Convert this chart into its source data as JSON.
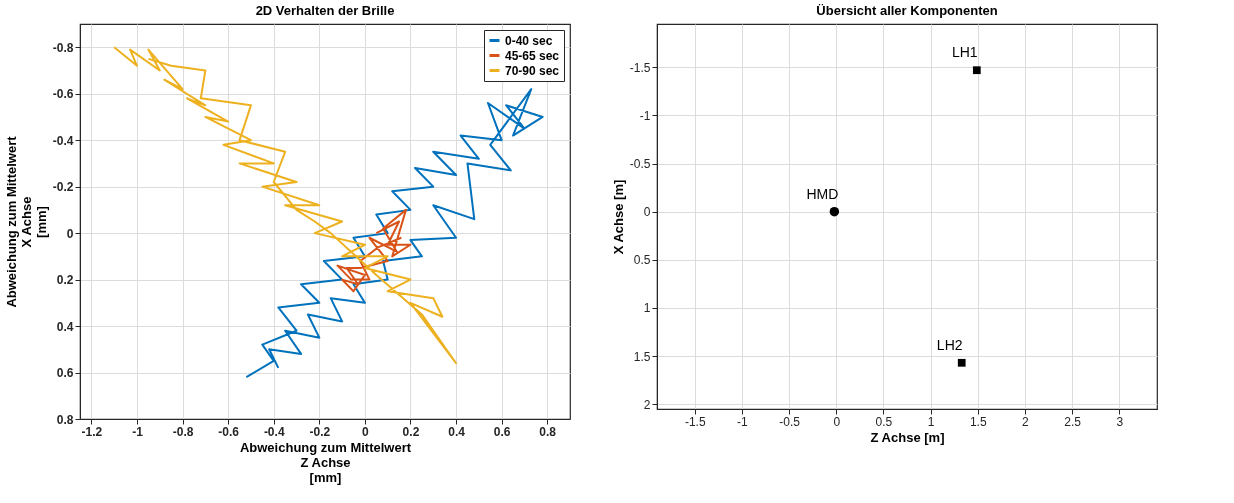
{
  "chart_data": [
    {
      "type": "line",
      "title": "2D Verhalten der Brille",
      "xlabel": "Abweichung zum Mittelwert\nZ Achse\n[mm]",
      "ylabel": "Abweichung zum Mittelwert\nX Achse\n[mm]",
      "xlim": [
        -1.25,
        0.9
      ],
      "xticks": [
        -1.2,
        -1,
        -0.8,
        -0.6,
        -0.4,
        -0.2,
        0,
        0.2,
        0.4,
        0.6,
        0.8
      ],
      "ylim": [
        0.8,
        -0.9
      ],
      "yticks": [
        -0.8,
        -0.6,
        -0.4,
        -0.2,
        0,
        0.2,
        0.4,
        0.6,
        0.8
      ],
      "grid": true,
      "legend": "top right",
      "series": [
        {
          "name": "0-40 sec",
          "color": "#0072bd",
          "x": [
            -0.52,
            -0.4,
            -0.45,
            -0.3,
            -0.38,
            -0.2,
            -0.28,
            -0.1,
            -0.18,
            0.0,
            -0.05,
            0.1,
            0.05,
            0.2,
            0.12,
            0.3,
            0.22,
            0.4,
            0.3,
            0.5,
            0.42,
            0.6,
            0.54,
            0.7,
            0.62,
            0.78,
            0.65,
            0.73,
            0.55,
            0.64,
            0.45,
            0.48,
            0.3,
            0.4,
            0.2,
            0.25,
            0.08,
            0.1,
            -0.05,
            0.0,
            -0.15,
            -0.1,
            -0.25,
            -0.2,
            -0.35,
            -0.28,
            -0.42,
            -0.38
          ],
          "values": [
            0.62,
            0.55,
            0.48,
            0.42,
            0.32,
            0.3,
            0.22,
            0.2,
            0.12,
            0.1,
            0.02,
            0.0,
            -0.08,
            -0.1,
            -0.18,
            -0.2,
            -0.28,
            -0.25,
            -0.35,
            -0.32,
            -0.42,
            -0.4,
            -0.56,
            -0.45,
            -0.55,
            -0.5,
            -0.42,
            -0.62,
            -0.38,
            -0.27,
            -0.3,
            -0.06,
            -0.12,
            0.02,
            0.03,
            0.1,
            0.12,
            0.2,
            0.22,
            0.3,
            0.28,
            0.38,
            0.35,
            0.45,
            0.42,
            0.52,
            0.5,
            0.58
          ]
        },
        {
          "name": "45-65 sec",
          "color": "#d95319",
          "x": [
            0.05,
            0.15,
            0.1,
            0.2,
            0.12,
            0.18,
            0.08,
            0.14,
            0.02,
            0.1,
            -0.02,
            -0.08,
            -0.03,
            -0.1,
            -0.05,
            0.0,
            -0.12,
            -0.06,
            0.02,
            -0.02,
            0.06,
            0.16
          ],
          "values": [
            0.0,
            -0.05,
            0.05,
            0.05,
            0.1,
            -0.1,
            -0.02,
            0.08,
            0.02,
            0.12,
            0.15,
            0.15,
            0.22,
            0.2,
            0.25,
            0.18,
            0.14,
            0.2,
            0.2,
            0.12,
            0.06,
            0.02
          ]
        },
        {
          "name": "70-90 sec",
          "color": "#edb120",
          "x": [
            -1.1,
            -1.0,
            -1.03,
            -0.9,
            -0.95,
            -0.8,
            -0.88,
            -0.7,
            -0.78,
            -0.6,
            -0.7,
            -0.5,
            -0.62,
            -0.4,
            -0.55,
            -0.3,
            -0.45,
            -0.2,
            -0.35,
            -0.1,
            -0.22,
            0.0,
            -0.1,
            0.1,
            0.0,
            0.2,
            0.1,
            0.3,
            0.34,
            0.2,
            0.4,
            0.25,
            0.05,
            -0.15,
            -0.22,
            -0.3,
            -0.4,
            -0.35,
            -0.55,
            -0.5,
            -0.72,
            -0.7,
            -0.85,
            -0.95
          ],
          "values": [
            -0.8,
            -0.72,
            -0.79,
            -0.7,
            -0.79,
            -0.62,
            -0.66,
            -0.55,
            -0.58,
            -0.48,
            -0.5,
            -0.4,
            -0.38,
            -0.3,
            -0.3,
            -0.22,
            -0.2,
            -0.12,
            -0.12,
            -0.05,
            0.0,
            0.05,
            0.1,
            0.1,
            0.15,
            0.2,
            0.25,
            0.28,
            0.36,
            0.3,
            0.56,
            0.35,
            0.18,
            0.0,
            -0.05,
            -0.1,
            -0.22,
            -0.35,
            -0.4,
            -0.55,
            -0.58,
            -0.7,
            -0.72,
            -0.75
          ]
        }
      ]
    },
    {
      "type": "scatter",
      "title": "Übersicht aller Komponenten",
      "xlabel": "Z Achse [m]",
      "ylabel": "X Achse [m]",
      "xlim": [
        -1.9,
        3.4
      ],
      "xticks": [
        -1.5,
        -1,
        -0.5,
        0,
        0.5,
        1,
        1.5,
        2,
        2.5,
        3
      ],
      "ylim": [
        2.05,
        -1.95
      ],
      "yticks": [
        -1.5,
        -1,
        -0.5,
        0,
        0.5,
        1,
        1.5,
        2
      ],
      "grid": true,
      "series": [
        {
          "name": "HMD",
          "color": "#000000",
          "marker": "circle",
          "x": [
            -0.02
          ],
          "values": [
            0
          ]
        },
        {
          "name": "LH1",
          "color": "#000000",
          "marker": "square",
          "x": [
            1.49
          ],
          "values": [
            -1.47
          ]
        },
        {
          "name": "LH2",
          "color": "#000000",
          "marker": "square",
          "x": [
            1.33
          ],
          "values": [
            1.57
          ]
        }
      ]
    }
  ]
}
